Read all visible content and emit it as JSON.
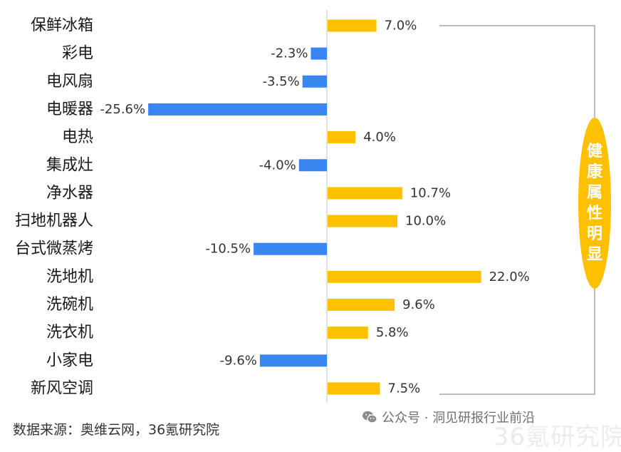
{
  "chart_data": {
    "type": "bar",
    "orientation": "horizontal",
    "categories": [
      "保鲜冰箱",
      "彩电",
      "电风扇",
      "电暖器",
      "电热",
      "集成灶",
      "净水器",
      "扫地机器人",
      "台式微蒸烤",
      "洗地机",
      "洗碗机",
      "洗衣机",
      "小家电",
      "新风空调"
    ],
    "values": [
      7.0,
      -2.3,
      -3.5,
      -25.6,
      4.0,
      -4.0,
      10.7,
      10.0,
      -10.5,
      22.0,
      9.6,
      5.8,
      -9.6,
      7.5
    ],
    "value_labels": [
      "7.0%",
      "-2.3%",
      "-3.5%",
      "-25.6%",
      "4.0%",
      "-4.0%",
      "10.7%",
      "10.0%",
      "-10.5%",
      "22.0%",
      "9.6%",
      "5.8%",
      "-9.6%",
      "7.5%"
    ],
    "xlim": [
      -25.6,
      22.0
    ],
    "colors": {
      "positive": "#FFC000",
      "negative": "#3A86F0",
      "axis": "#D9D9D9",
      "bracket": "#A6A6A6"
    },
    "annotation": "健康属性明显",
    "grid": false,
    "legend": "none"
  },
  "footer": {
    "source": "数据来源：奥维云网，36氪研究院",
    "watermark_text": "公众号 · 洞见研报行业前沿",
    "watermark_icon": "wechat-icon",
    "background_watermark": "36氪研究院"
  }
}
